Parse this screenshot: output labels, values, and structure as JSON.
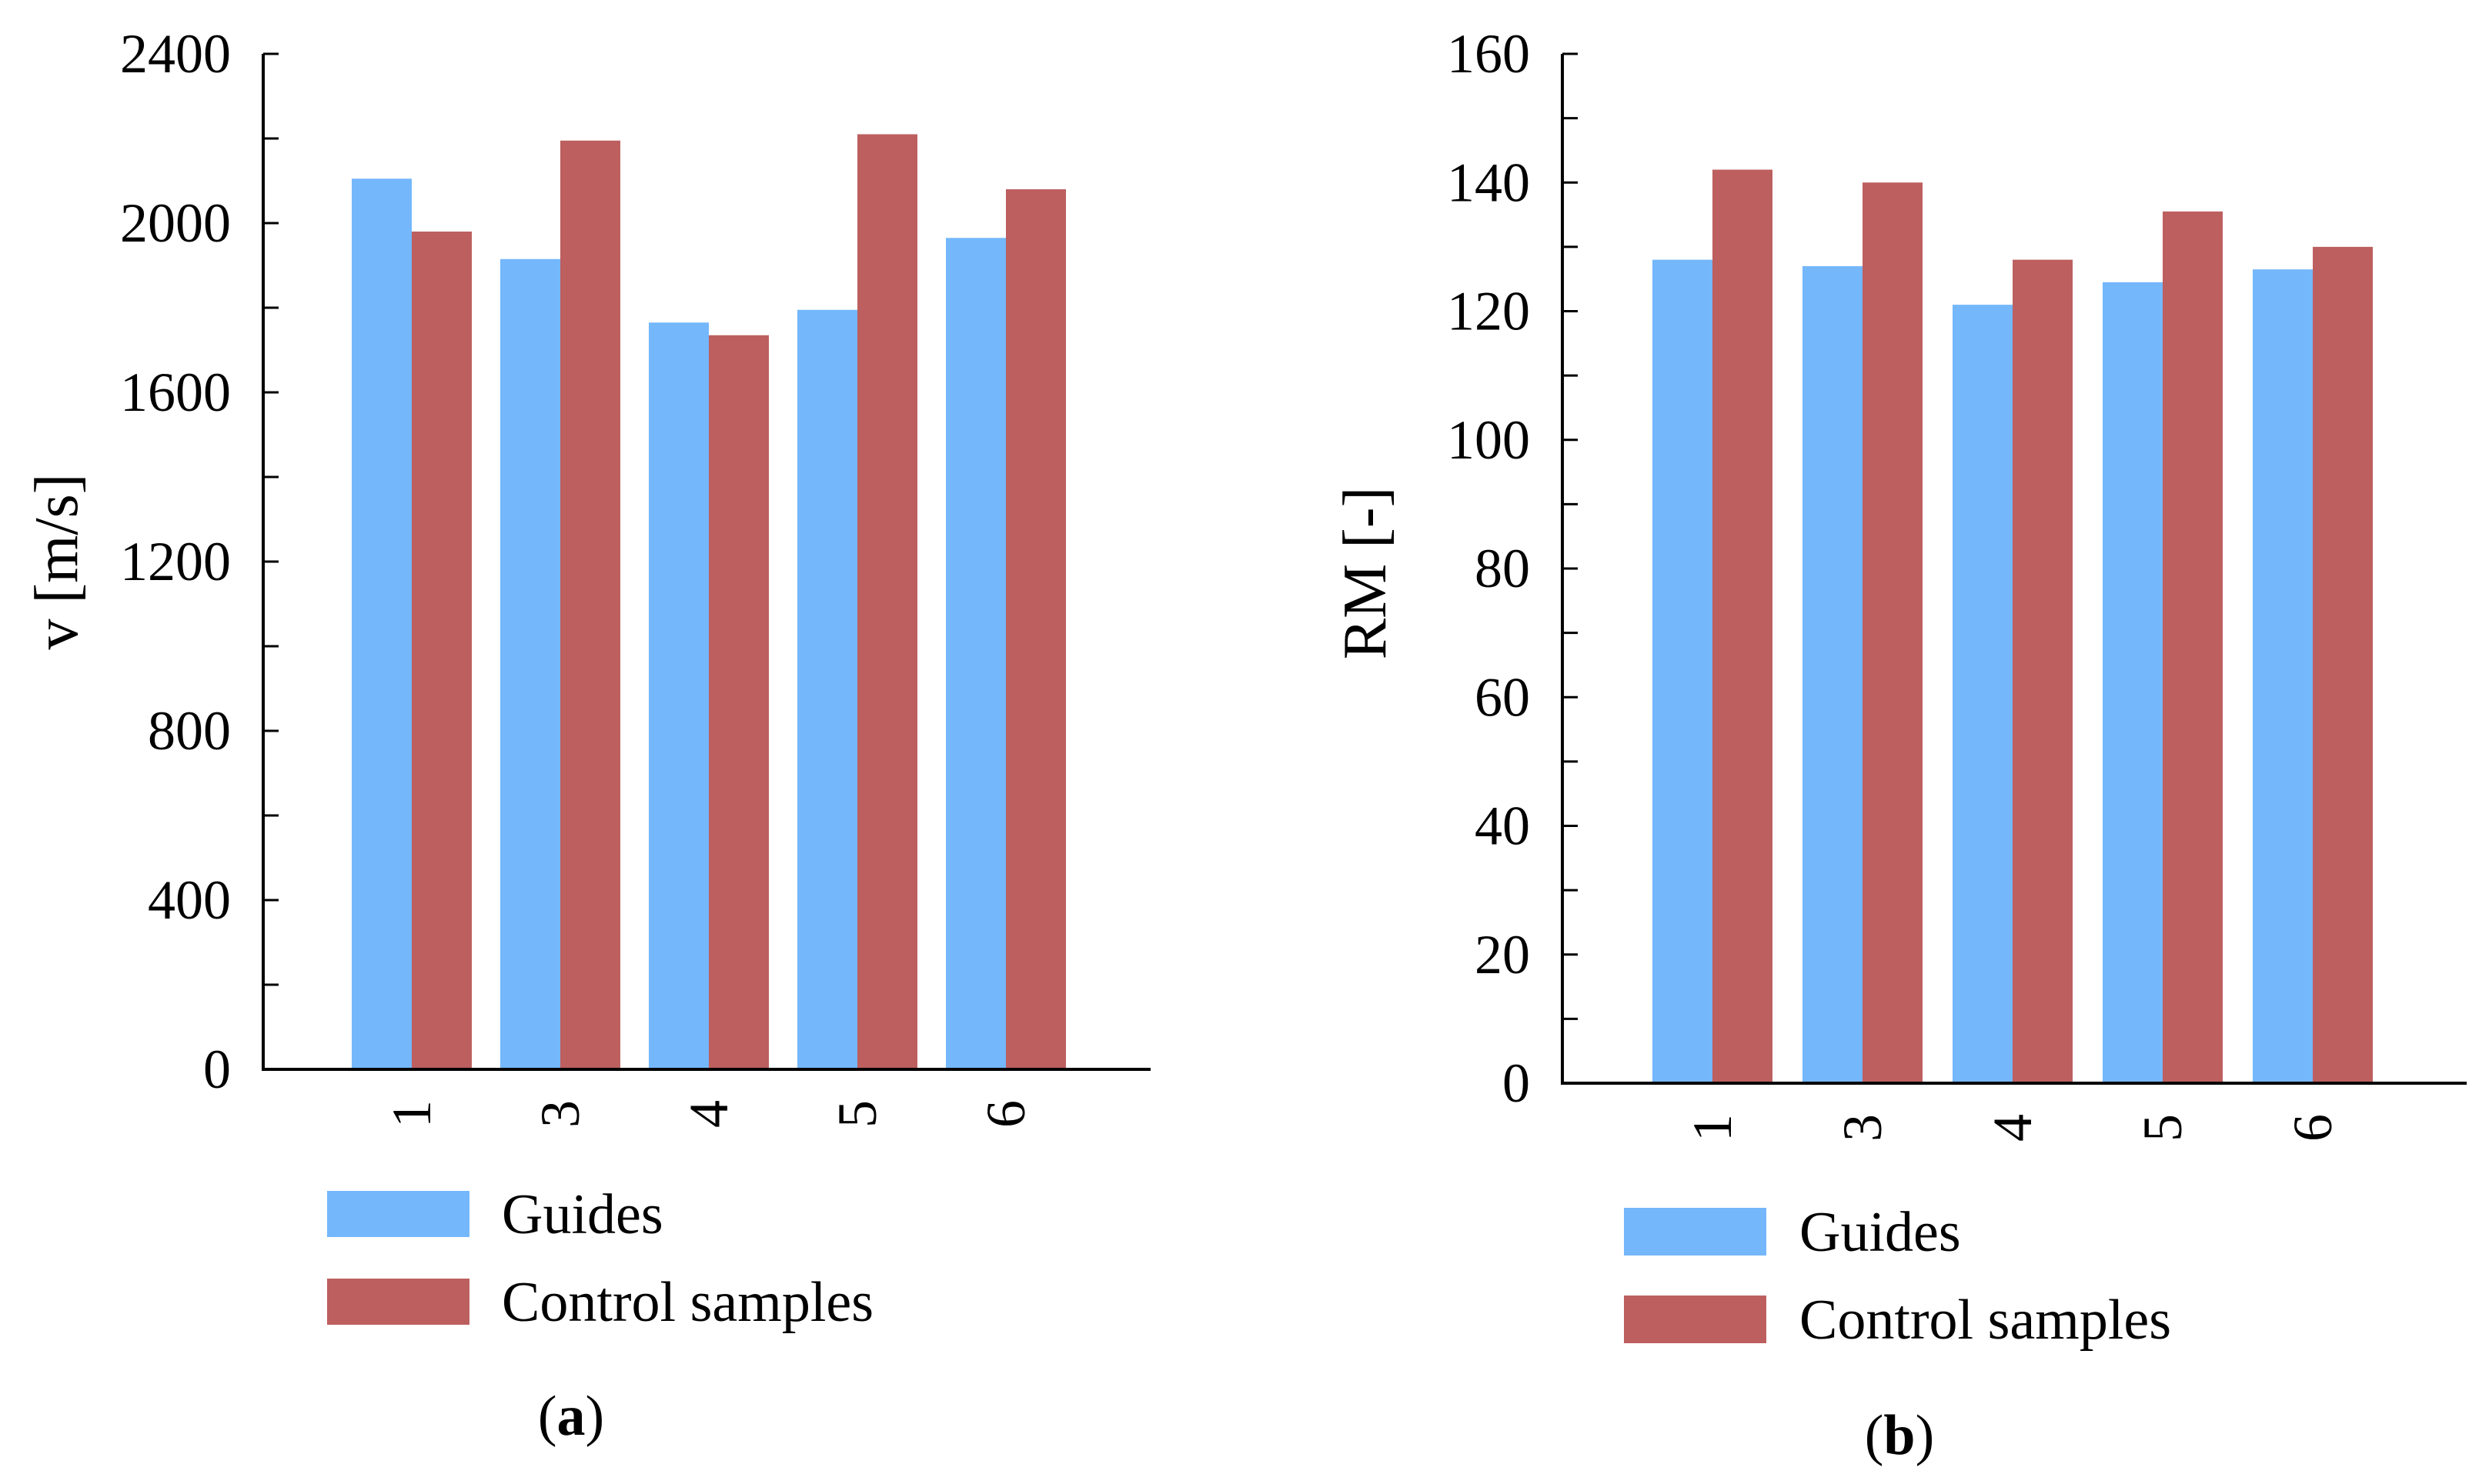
{
  "chart_data": [
    {
      "type": "bar",
      "panel": "a",
      "categories": [
        "1",
        "3",
        "4",
        "5",
        "6"
      ],
      "series": [
        {
          "name": "Guides",
          "values": [
            2105,
            1915,
            1765,
            1795,
            1965
          ]
        },
        {
          "name": "Control samples",
          "values": [
            1980,
            2195,
            1735,
            2210,
            2080
          ]
        }
      ],
      "xlabel": "",
      "ylabel": "v [m/s]",
      "ylim": [
        0,
        2400
      ],
      "yticks": [
        0,
        400,
        800,
        1200,
        1600,
        2000,
        2400
      ],
      "grid": false,
      "legend": "bottom"
    },
    {
      "type": "bar",
      "panel": "b",
      "categories": [
        "1",
        "3",
        "4",
        "5",
        "6"
      ],
      "series": [
        {
          "name": "Guides",
          "values": [
            128,
            127,
            121,
            124.5,
            126.5
          ]
        },
        {
          "name": "Control samples",
          "values": [
            142,
            140,
            128,
            135.5,
            130
          ]
        }
      ],
      "xlabel": "",
      "ylabel": "RM [-]",
      "ylim": [
        0,
        160
      ],
      "yticks": [
        0,
        20,
        40,
        60,
        80,
        100,
        120,
        140,
        160
      ],
      "grid": false,
      "legend": "bottom"
    }
  ],
  "colors": {
    "Guides": "#74B7FB",
    "Control samples": "#BD5F5F"
  },
  "labels": {
    "panel_a": {
      "open": "(",
      "letter": "a",
      "close": ")"
    },
    "panel_b": {
      "open": "(",
      "letter": "b",
      "close": ")"
    }
  }
}
